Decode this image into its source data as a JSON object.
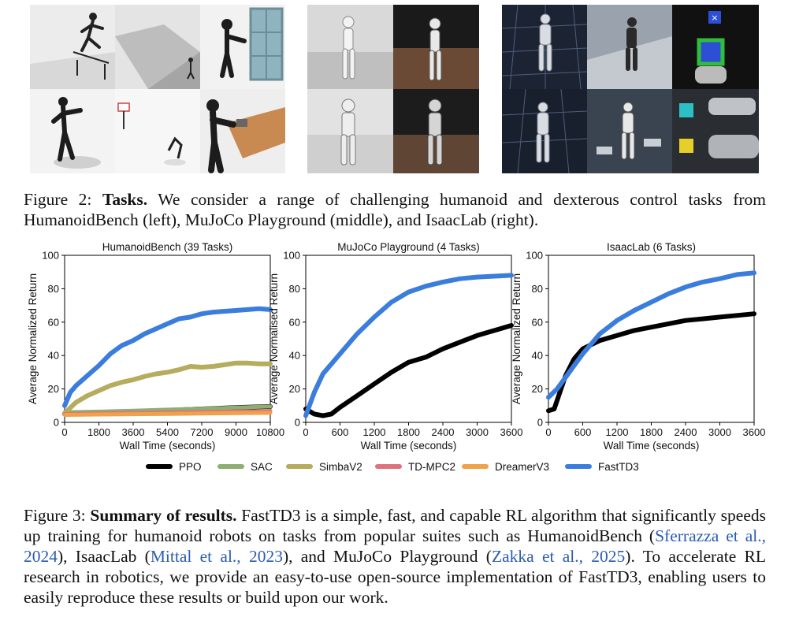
{
  "figure2": {
    "label": "Figure 2:",
    "bold": "Tasks.",
    "text": " We consider a range of challenging humanoid and dexterous control tasks from HumanoidBench (left), MuJoCo Playground (middle), and IsaacLab (right).",
    "panels": [
      "humanoidbench-renders",
      "mujoco-playground-renders",
      "isaaclab-renders"
    ]
  },
  "colors": {
    "PPO": "#000000",
    "SAC": "#8fae72",
    "SimbaV2": "#b6ac5e",
    "TD-MPC2": "#e07280",
    "DreamerV3": "#efa24a",
    "FastTD3": "#3b7ddd"
  },
  "chart_data": [
    {
      "type": "line",
      "title": "HumanoidBench (39 Tasks)",
      "xlabel": "Wall Time (seconds)",
      "ylabel": "Average Normalized Return",
      "xlim": [
        0,
        10800
      ],
      "ylim": [
        0,
        100
      ],
      "xticks": [
        0,
        1800,
        3600,
        5400,
        7200,
        9000,
        10800
      ],
      "yticks": [
        0,
        20,
        40,
        60,
        80,
        100
      ],
      "grid": false,
      "series": [
        {
          "name": "PPO",
          "x": [
            0,
            1800,
            3600,
            5400,
            7200,
            9000,
            10800
          ],
          "y": [
            5,
            5.6,
            6.4,
            7.2,
            8,
            8.8,
            9.5
          ]
        },
        {
          "name": "SAC",
          "x": [
            0,
            1800,
            3600,
            5400,
            7200,
            9000,
            10800
          ],
          "y": [
            6,
            6.4,
            7,
            7.6,
            8.2,
            8.8,
            9.5
          ]
        },
        {
          "name": "SimbaV2",
          "x": [
            0,
            600,
            1200,
            1800,
            2400,
            3000,
            3600,
            4200,
            4800,
            5400,
            6000,
            6600,
            7200,
            7800,
            8400,
            9000,
            9600,
            10200,
            10800
          ],
          "y": [
            5.5,
            12,
            16,
            19,
            22,
            24,
            25.5,
            27.5,
            29,
            30,
            31.5,
            33.5,
            33,
            33.5,
            34.5,
            35.5,
            35.5,
            35,
            35
          ]
        },
        {
          "name": "TD-MPC2",
          "x": [
            0,
            1800,
            3600,
            5400,
            7200,
            9000,
            10800
          ],
          "y": [
            5,
            5.3,
            5.6,
            5.9,
            6.2,
            6.5,
            6.8
          ]
        },
        {
          "name": "DreamerV3",
          "x": [
            0,
            1800,
            3600,
            5400,
            7200,
            9000,
            10800
          ],
          "y": [
            4.5,
            4.7,
            4.9,
            5.1,
            5.3,
            5.5,
            5.7
          ]
        },
        {
          "name": "FastTD3",
          "x": [
            0,
            300,
            600,
            1200,
            1800,
            2400,
            3000,
            3600,
            4200,
            4800,
            5400,
            6000,
            6600,
            7200,
            7800,
            8400,
            9000,
            9600,
            10200,
            10800
          ],
          "y": [
            10,
            18,
            22,
            28,
            34,
            41,
            46,
            49,
            53,
            56,
            59,
            62,
            63,
            65,
            66,
            66.5,
            67,
            67.5,
            68,
            67.5
          ]
        }
      ]
    },
    {
      "type": "line",
      "title": "MuJoCo Playground (4 Tasks)",
      "xlabel": "Wall Time (seconds)",
      "ylabel": "Average Normalised Return",
      "xlim": [
        0,
        3600
      ],
      "ylim": [
        0,
        100
      ],
      "xticks": [
        0,
        600,
        1200,
        1800,
        2400,
        3000,
        3600
      ],
      "yticks": [
        0,
        20,
        40,
        60,
        80,
        100
      ],
      "grid": false,
      "series": [
        {
          "name": "PPO",
          "x": [
            0,
            150,
            300,
            450,
            600,
            900,
            1200,
            1500,
            1800,
            2100,
            2400,
            2700,
            3000,
            3300,
            3600
          ],
          "y": [
            8,
            5,
            4,
            5,
            9,
            16,
            23,
            30,
            36,
            39,
            44,
            48,
            52,
            55,
            58
          ]
        },
        {
          "name": "FastTD3",
          "x": [
            0,
            150,
            300,
            450,
            600,
            900,
            1200,
            1500,
            1800,
            2100,
            2400,
            2700,
            3000,
            3300,
            3600
          ],
          "y": [
            4,
            18,
            29,
            35,
            41,
            53,
            63,
            72,
            78,
            81.5,
            84,
            86,
            87,
            87.5,
            88
          ]
        }
      ]
    },
    {
      "type": "line",
      "title": "IsaacLab (6 Tasks)",
      "xlabel": "Wall Time (seconds)",
      "ylabel": "Average Normalized Return",
      "xlim": [
        0,
        3600
      ],
      "ylim": [
        0,
        100
      ],
      "xticks": [
        0,
        600,
        1200,
        1800,
        2400,
        3000,
        3600
      ],
      "yticks": [
        0,
        20,
        40,
        60,
        80,
        100
      ],
      "grid": false,
      "series": [
        {
          "name": "PPO",
          "x": [
            0,
            100,
            200,
            300,
            450,
            600,
            900,
            1200,
            1500,
            1800,
            2100,
            2400,
            2700,
            3000,
            3300,
            3600
          ],
          "y": [
            7,
            8,
            18,
            28,
            38,
            44,
            49,
            52,
            55,
            57,
            59,
            61,
            62,
            63,
            64,
            65
          ]
        },
        {
          "name": "FastTD3",
          "x": [
            0,
            150,
            300,
            450,
            600,
            750,
            900,
            1200,
            1500,
            1800,
            2100,
            2400,
            2700,
            3000,
            3300,
            3600
          ],
          "y": [
            15,
            20,
            27,
            34,
            41,
            47,
            53,
            61,
            67,
            72,
            77,
            81,
            84,
            86,
            88.5,
            89.5
          ]
        }
      ]
    }
  ],
  "legend": [
    "PPO",
    "SAC",
    "SimbaV2",
    "TD-MPC2",
    "DreamerV3",
    "FastTD3"
  ],
  "figure3": {
    "label": "Figure 3:",
    "bold": "Summary of results.",
    "text1": " FastTD3 is a simple, fast, and capable RL algorithm that significantly speeds up training for humanoid robots on tasks from popular suites such as HumanoidBench (",
    "cite1": "Sferrazza et al., 2024",
    "text2": "), IsaacLab (",
    "cite2": "Mittal et al., 2023",
    "text3": "), and MuJoCo Playground (",
    "cite3": "Zakka et al., 2025",
    "text4": "). To accelerate RL research in robotics, we provide an easy-to-use open-source implementation of FastTD3, enabling users to easily reproduce these results or build upon our work."
  }
}
